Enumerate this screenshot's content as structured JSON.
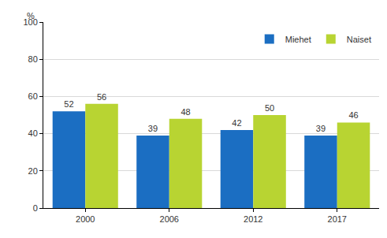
{
  "chart_data": {
    "type": "bar",
    "ylabel": "%",
    "categories": [
      "2000",
      "2006",
      "2012",
      "2017"
    ],
    "series": [
      {
        "name": "Miehet",
        "color": "#1b6ec2",
        "values": [
          52,
          39,
          42,
          39
        ]
      },
      {
        "name": "Naiset",
        "color": "#b8d432",
        "values": [
          56,
          48,
          50,
          46
        ]
      }
    ],
    "ylim": [
      0,
      100
    ],
    "yticks": [
      0,
      20,
      40,
      60,
      80,
      100
    ],
    "grid": true,
    "legend": "upper right",
    "data_labels": true
  }
}
